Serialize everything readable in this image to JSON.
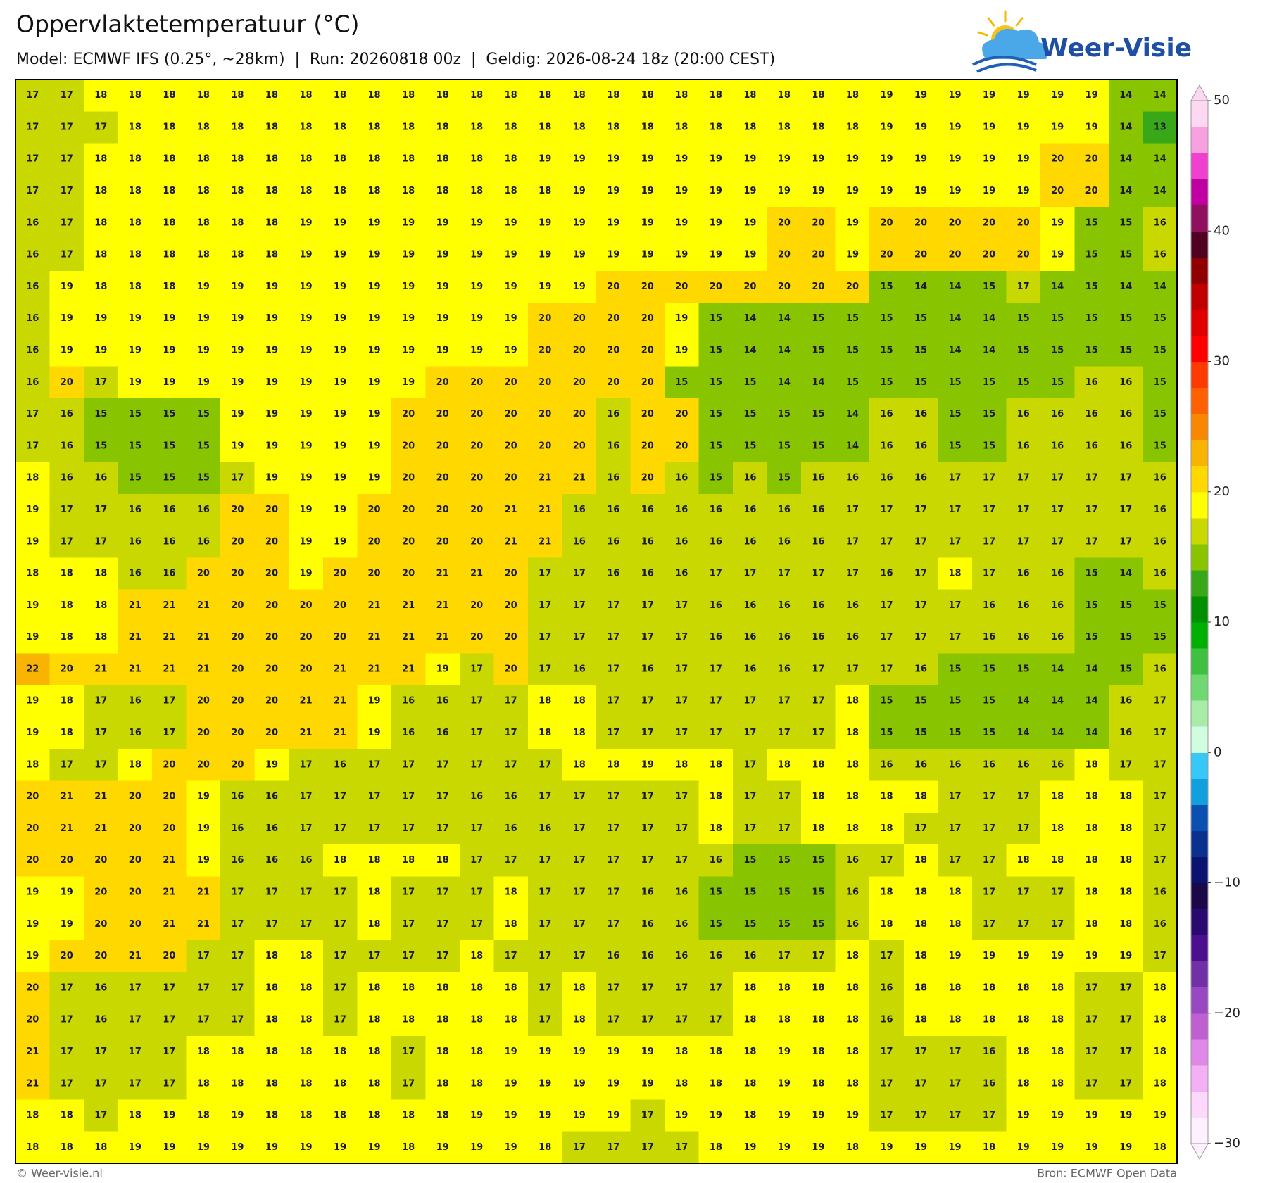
{
  "header": {
    "title": "Oppervlaktetemperatuur (°C)",
    "subtitle": "Model: ECMWF IFS (0.25°, ~28km)  |  Run: 20260818 00z  |  Geldig: 2026-08-24 18z (20:00 CEST)",
    "logo": "Weer-Visie"
  },
  "map": {
    "type": "grid",
    "values": [
      [
        17,
        17,
        18,
        18,
        18,
        18,
        18,
        18,
        18,
        18,
        18,
        18,
        18,
        18,
        18,
        18,
        18,
        18,
        18,
        18,
        18,
        18,
        18,
        18,
        18,
        19,
        19,
        19,
        19,
        19,
        19,
        19,
        14,
        14
      ],
      [
        17,
        17,
        17,
        18,
        18,
        18,
        18,
        18,
        18,
        18,
        18,
        18,
        18,
        18,
        18,
        18,
        18,
        18,
        18,
        18,
        18,
        18,
        18,
        18,
        18,
        19,
        19,
        19,
        19,
        19,
        19,
        19,
        14,
        13
      ],
      [
        17,
        17,
        18,
        18,
        18,
        18,
        18,
        18,
        18,
        18,
        18,
        18,
        18,
        18,
        18,
        19,
        19,
        19,
        19,
        19,
        19,
        19,
        19,
        19,
        19,
        19,
        19,
        19,
        19,
        19,
        20,
        20,
        14,
        14
      ],
      [
        17,
        17,
        18,
        18,
        18,
        18,
        18,
        18,
        18,
        18,
        18,
        18,
        18,
        18,
        18,
        18,
        19,
        19,
        19,
        19,
        19,
        19,
        19,
        19,
        19,
        19,
        19,
        19,
        19,
        19,
        20,
        20,
        14,
        14
      ],
      [
        16,
        17,
        18,
        18,
        18,
        18,
        18,
        18,
        19,
        19,
        19,
        19,
        19,
        19,
        19,
        19,
        19,
        19,
        19,
        19,
        19,
        19,
        20,
        20,
        19,
        20,
        20,
        20,
        20,
        20,
        19,
        15,
        15,
        16
      ],
      [
        16,
        17,
        18,
        18,
        18,
        18,
        18,
        18,
        19,
        19,
        19,
        19,
        19,
        19,
        19,
        19,
        19,
        19,
        19,
        19,
        19,
        19,
        20,
        20,
        19,
        20,
        20,
        20,
        20,
        20,
        19,
        15,
        15,
        16
      ],
      [
        16,
        19,
        18,
        18,
        18,
        19,
        19,
        19,
        19,
        19,
        19,
        19,
        19,
        19,
        19,
        19,
        19,
        20,
        20,
        20,
        20,
        20,
        20,
        20,
        20,
        15,
        14,
        14,
        15,
        17,
        14,
        15,
        14,
        14
      ],
      [
        16,
        19,
        19,
        19,
        19,
        19,
        19,
        19,
        19,
        19,
        19,
        19,
        19,
        19,
        19,
        20,
        20,
        20,
        20,
        19,
        15,
        14,
        14,
        15,
        15,
        15,
        15,
        14,
        14,
        15,
        15,
        15,
        15,
        15
      ],
      [
        16,
        19,
        19,
        19,
        19,
        19,
        19,
        19,
        19,
        19,
        19,
        19,
        19,
        19,
        19,
        20,
        20,
        20,
        20,
        19,
        15,
        14,
        14,
        15,
        15,
        15,
        15,
        14,
        14,
        15,
        15,
        15,
        15,
        15
      ],
      [
        16,
        20,
        17,
        19,
        19,
        19,
        19,
        19,
        19,
        19,
        19,
        19,
        20,
        20,
        20,
        20,
        20,
        20,
        20,
        15,
        15,
        15,
        14,
        14,
        15,
        15,
        15,
        15,
        15,
        15,
        15,
        16,
        16,
        15
      ],
      [
        17,
        16,
        15,
        15,
        15,
        15,
        19,
        19,
        19,
        19,
        19,
        20,
        20,
        20,
        20,
        20,
        20,
        16,
        20,
        20,
        15,
        15,
        15,
        15,
        14,
        16,
        16,
        15,
        15,
        16,
        16,
        16,
        16,
        15
      ],
      [
        17,
        16,
        15,
        15,
        15,
        15,
        19,
        19,
        19,
        19,
        19,
        20,
        20,
        20,
        20,
        20,
        20,
        16,
        20,
        20,
        15,
        15,
        15,
        15,
        14,
        16,
        16,
        15,
        15,
        16,
        16,
        16,
        16,
        15
      ],
      [
        18,
        16,
        16,
        15,
        15,
        15,
        17,
        19,
        19,
        19,
        19,
        20,
        20,
        20,
        20,
        21,
        21,
        16,
        20,
        16,
        15,
        16,
        15,
        16,
        16,
        16,
        16,
        17,
        17,
        17,
        17,
        17,
        17,
        16
      ],
      [
        19,
        17,
        17,
        16,
        16,
        16,
        20,
        20,
        19,
        19,
        20,
        20,
        20,
        20,
        21,
        21,
        16,
        16,
        16,
        16,
        16,
        16,
        16,
        16,
        17,
        17,
        17,
        17,
        17,
        17,
        17,
        17,
        17,
        16
      ],
      [
        19,
        17,
        17,
        16,
        16,
        16,
        20,
        20,
        19,
        19,
        20,
        20,
        20,
        20,
        21,
        21,
        16,
        16,
        16,
        16,
        16,
        16,
        16,
        16,
        17,
        17,
        17,
        17,
        17,
        17,
        17,
        17,
        17,
        16
      ],
      [
        18,
        18,
        18,
        16,
        16,
        20,
        20,
        20,
        19,
        20,
        20,
        20,
        21,
        21,
        20,
        17,
        17,
        16,
        16,
        16,
        17,
        17,
        17,
        17,
        17,
        16,
        17,
        18,
        17,
        16,
        16,
        15,
        14,
        16
      ],
      [
        19,
        18,
        18,
        21,
        21,
        21,
        20,
        20,
        20,
        20,
        21,
        21,
        21,
        20,
        20,
        17,
        17,
        17,
        17,
        17,
        16,
        16,
        16,
        16,
        16,
        17,
        17,
        17,
        16,
        16,
        16,
        15,
        15,
        15
      ],
      [
        19,
        18,
        18,
        21,
        21,
        21,
        20,
        20,
        20,
        20,
        21,
        21,
        21,
        20,
        20,
        17,
        17,
        17,
        17,
        17,
        16,
        16,
        16,
        16,
        16,
        17,
        17,
        17,
        16,
        16,
        16,
        15,
        15,
        15
      ],
      [
        22,
        20,
        21,
        21,
        21,
        21,
        20,
        20,
        20,
        21,
        21,
        21,
        19,
        17,
        20,
        17,
        16,
        17,
        16,
        17,
        17,
        16,
        16,
        17,
        17,
        17,
        16,
        15,
        15,
        15,
        14,
        14,
        15,
        16
      ],
      [
        19,
        18,
        17,
        16,
        17,
        20,
        20,
        20,
        21,
        21,
        19,
        16,
        16,
        17,
        17,
        18,
        18,
        17,
        17,
        17,
        17,
        17,
        17,
        17,
        18,
        15,
        15,
        15,
        15,
        14,
        14,
        14,
        16,
        17
      ],
      [
        19,
        18,
        17,
        16,
        17,
        20,
        20,
        20,
        21,
        21,
        19,
        16,
        16,
        17,
        17,
        18,
        18,
        17,
        17,
        17,
        17,
        17,
        17,
        17,
        18,
        15,
        15,
        15,
        15,
        14,
        14,
        14,
        16,
        17
      ],
      [
        18,
        17,
        17,
        18,
        20,
        20,
        20,
        19,
        17,
        16,
        17,
        17,
        17,
        17,
        17,
        17,
        18,
        18,
        19,
        18,
        18,
        17,
        18,
        18,
        18,
        16,
        16,
        16,
        16,
        16,
        16,
        18,
        17,
        17
      ],
      [
        20,
        21,
        21,
        20,
        20,
        19,
        16,
        16,
        17,
        17,
        17,
        17,
        17,
        16,
        16,
        17,
        17,
        17,
        17,
        17,
        18,
        17,
        17,
        18,
        18,
        18,
        18,
        17,
        17,
        17,
        18,
        18,
        18,
        17
      ],
      [
        20,
        21,
        21,
        20,
        20,
        19,
        16,
        16,
        17,
        17,
        17,
        17,
        17,
        17,
        16,
        16,
        17,
        17,
        17,
        17,
        18,
        17,
        17,
        18,
        18,
        18,
        17,
        17,
        17,
        17,
        18,
        18,
        18,
        17
      ],
      [
        20,
        20,
        20,
        20,
        21,
        19,
        16,
        16,
        16,
        18,
        18,
        18,
        18,
        17,
        17,
        17,
        17,
        17,
        17,
        17,
        16,
        15,
        15,
        15,
        16,
        17,
        18,
        17,
        17,
        18,
        18,
        18,
        18,
        17
      ],
      [
        19,
        19,
        20,
        20,
        21,
        21,
        17,
        17,
        17,
        17,
        18,
        17,
        17,
        17,
        18,
        17,
        17,
        17,
        16,
        16,
        15,
        15,
        15,
        15,
        16,
        18,
        18,
        18,
        17,
        17,
        17,
        18,
        18,
        16
      ],
      [
        19,
        19,
        20,
        20,
        21,
        21,
        17,
        17,
        17,
        17,
        18,
        17,
        17,
        17,
        18,
        17,
        17,
        17,
        16,
        16,
        15,
        15,
        15,
        15,
        16,
        18,
        18,
        18,
        17,
        17,
        17,
        18,
        18,
        16
      ],
      [
        19,
        20,
        20,
        21,
        20,
        17,
        17,
        18,
        18,
        17,
        17,
        17,
        17,
        18,
        17,
        17,
        17,
        16,
        16,
        16,
        16,
        16,
        17,
        17,
        18,
        17,
        18,
        19,
        19,
        19,
        19,
        19,
        19,
        17
      ],
      [
        20,
        17,
        16,
        17,
        17,
        17,
        17,
        18,
        18,
        17,
        18,
        18,
        18,
        18,
        18,
        17,
        18,
        17,
        17,
        17,
        17,
        18,
        18,
        18,
        18,
        16,
        18,
        18,
        18,
        18,
        18,
        17,
        17,
        18
      ],
      [
        20,
        17,
        16,
        17,
        17,
        17,
        17,
        18,
        18,
        17,
        18,
        18,
        18,
        18,
        18,
        17,
        18,
        17,
        17,
        17,
        17,
        18,
        18,
        18,
        18,
        16,
        18,
        18,
        18,
        18,
        18,
        17,
        17,
        18
      ],
      [
        21,
        17,
        17,
        17,
        17,
        18,
        18,
        18,
        18,
        18,
        18,
        17,
        18,
        18,
        19,
        19,
        19,
        19,
        19,
        18,
        18,
        18,
        19,
        18,
        18,
        17,
        17,
        17,
        16,
        18,
        18,
        17,
        17,
        18
      ],
      [
        21,
        17,
        17,
        17,
        17,
        18,
        18,
        18,
        18,
        18,
        18,
        17,
        18,
        18,
        19,
        19,
        19,
        19,
        19,
        18,
        18,
        18,
        19,
        18,
        18,
        17,
        17,
        17,
        16,
        18,
        18,
        17,
        17,
        18
      ],
      [
        18,
        18,
        17,
        18,
        19,
        18,
        19,
        18,
        18,
        18,
        18,
        18,
        18,
        19,
        19,
        19,
        19,
        19,
        17,
        19,
        19,
        18,
        19,
        19,
        19,
        17,
        17,
        17,
        17,
        19,
        19,
        19,
        19,
        19
      ],
      [
        18,
        18,
        18,
        19,
        19,
        19,
        19,
        19,
        19,
        19,
        19,
        18,
        19,
        19,
        19,
        18,
        17,
        17,
        17,
        17,
        18,
        19,
        19,
        19,
        18,
        19,
        19,
        19,
        18,
        19,
        19,
        19,
        19,
        18
      ]
    ],
    "colorbar": {
      "lim": [
        -30,
        50
      ],
      "ticks": [
        50,
        40,
        30,
        20,
        10,
        0,
        {
          "value": -10,
          "label": "−10"
        },
        {
          "value": -20,
          "label": "−20"
        },
        {
          "value": -30,
          "label": "−30"
        }
      ],
      "colors": [
        "#fff0ff",
        "#fcd8fc",
        "#f4b0f4",
        "#e088e8",
        "#c060d0",
        "#9848c0",
        "#7030a8",
        "#4a1090",
        "#2a0a70",
        "#1a0848",
        "#0a1470",
        "#0a3090",
        "#0a50b0",
        "#10a0e0",
        "#38c8f8",
        "#d0fce0",
        "#a8eca8",
        "#70d870",
        "#40c040",
        "#00b000",
        "#009000",
        "#38a818",
        "#88c400",
        "#c8d800",
        "#ffff00",
        "#ffd800",
        "#f8b400",
        "#f88800",
        "#ff6000",
        "#ff3a00",
        "#ff0000",
        "#e00000",
        "#c00000",
        "#900000",
        "#500020",
        "#901060",
        "#c000a0",
        "#f040d0",
        "#f8a0e0",
        "#fdd8f0"
      ]
    }
  },
  "footer": {
    "credit": "© Weer-visie.nl",
    "source": "Bron: ECMWF Open Data"
  }
}
